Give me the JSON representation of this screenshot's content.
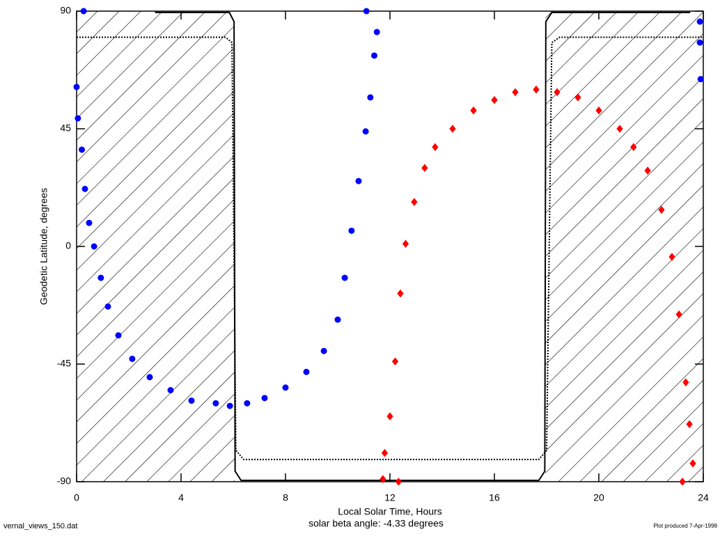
{
  "chart_data": {
    "type": "scatter",
    "x_label": "Local Solar Time, Hours",
    "y_label": "Geodetic Latitude, degrees",
    "subtitle": "solar beta angle:  -4.33 degrees",
    "file_label": "vernal_views_150.dat",
    "produced_label": "Plot produced  7-Apr-1998",
    "xlim": [
      0,
      24
    ],
    "ylim": [
      -90,
      90
    ],
    "xticks": [
      0,
      4,
      8,
      12,
      16,
      20,
      24
    ],
    "yticks": [
      -90,
      -45,
      0,
      45,
      90
    ],
    "night_regions": [
      [
        0,
        6.05
      ],
      [
        17.95,
        24
      ]
    ],
    "series": [
      {
        "color": "#0000ff",
        "marker": "circle",
        "x": [
          0.27,
          0.0,
          0.05,
          0.2,
          0.32,
          0.48,
          0.67,
          0.93,
          1.2,
          1.6,
          2.13,
          2.8,
          3.6,
          4.4,
          5.33,
          5.87,
          6.53,
          7.2,
          8.0,
          8.8,
          9.47,
          10.0,
          10.27,
          10.53,
          10.8,
          11.07,
          11.25,
          11.4,
          11.5,
          11.1,
          23.87,
          23.87,
          23.9
        ],
        "y": [
          90,
          61,
          49,
          37,
          22,
          9,
          0,
          -12,
          -23,
          -34,
          -43,
          -50,
          -55,
          -59,
          -60,
          -61,
          -60,
          -58,
          -54,
          -48,
          -40,
          -28,
          -12,
          6,
          25,
          44,
          57,
          73,
          82,
          90,
          86,
          78,
          64
        ]
      },
      {
        "color": "#ff0000",
        "marker": "diamond",
        "x": [
          11.73,
          11.8,
          12.0,
          12.2,
          12.4,
          12.6,
          12.93,
          13.33,
          13.73,
          14.4,
          15.2,
          16.0,
          16.8,
          17.6,
          18.4,
          19.2,
          20.0,
          20.8,
          21.33,
          21.87,
          22.4,
          22.8,
          23.07,
          23.33,
          23.47,
          23.6,
          23.2,
          12.33
        ],
        "y": [
          -89,
          -79,
          -65,
          -44,
          -18,
          1,
          17,
          30,
          38,
          45,
          52,
          56,
          59,
          60,
          59,
          57,
          52,
          45,
          38,
          29,
          14,
          -4,
          -26,
          -52,
          -68,
          -83,
          -90,
          -90
        ]
      }
    ],
    "lines": [
      {
        "style": "solid",
        "x": [
          3.0,
          5.85,
          6.03,
          6.07,
          6.3,
          17.7,
          17.93,
          17.97,
          18.2,
          23.5
        ],
        "y": [
          89.5,
          89.5,
          86,
          -86,
          -89.5,
          -89.5,
          -86,
          86,
          89.5,
          89.5
        ]
      },
      {
        "style": "dotted",
        "x": [
          0,
          5.7,
          5.95,
          6.1,
          6.4,
          17.7,
          18.0,
          18.2,
          18.5,
          24
        ],
        "y": [
          80,
          80,
          78,
          -78,
          -81.5,
          -81.5,
          -78,
          78,
          80,
          80
        ]
      }
    ]
  }
}
